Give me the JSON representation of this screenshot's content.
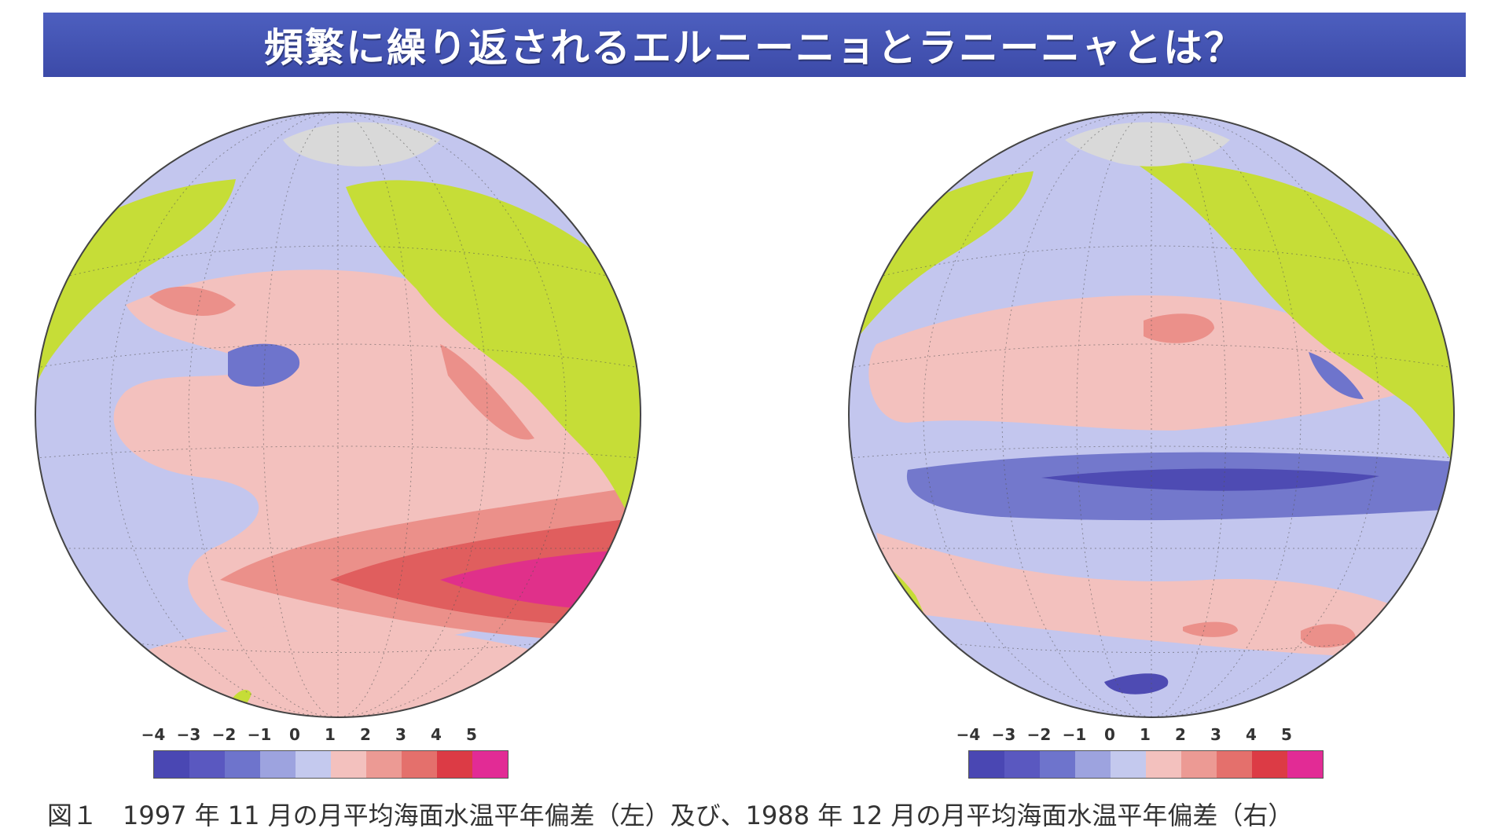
{
  "title": "頻繁に繰り返されるエルニーニョとラニーニャとは？",
  "scale": {
    "labels": [
      "−4",
      "−3",
      "−2",
      "−1",
      "0",
      "1",
      "2",
      "3",
      "4",
      "5"
    ],
    "colors": [
      "#4a47b3",
      "#5a58c0",
      "#6e74cc",
      "#9da3df",
      "#c4c9ee",
      "#f3c1be",
      "#ec9a94",
      "#e4706c",
      "#dc3b45",
      "#e22b95"
    ]
  },
  "palette": {
    "ocean_neutral": "#c3c6ee",
    "warm_light": "#f3c1be",
    "warm_mid": "#eb908a",
    "warm_strong": "#e05e5e",
    "warm_max": "#e0308a",
    "cool_mid": "#7378cc",
    "cool_strong": "#4e4bb3",
    "land": "#c6dd37",
    "ice": "#d9d9d9"
  },
  "caption": "図１　1997 年 11 月の月平均海面水温平年偏差（左）及び、1988 年 12 月の月平均海面水温平年偏差（右）"
}
